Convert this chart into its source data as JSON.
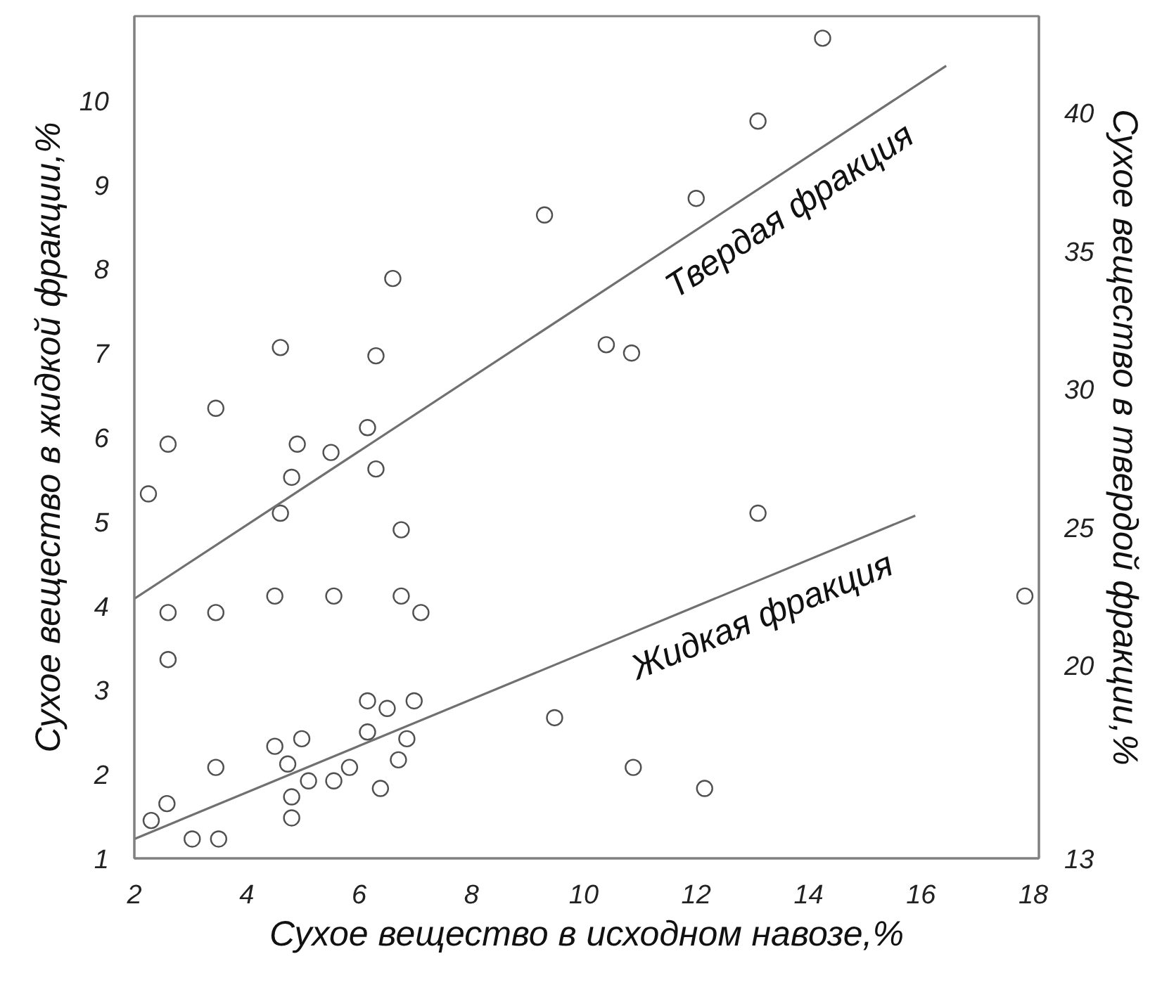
{
  "chart_data": {
    "type": "scatter",
    "xlabel": "Сухое вещество в исходном навозе,%",
    "ylabel": "Сухое вещество в жидкой фракции,%",
    "y2label": "Сухое вещество в твердой фракции,%",
    "xlim": [
      2,
      18.1
    ],
    "xticks": [
      2,
      4,
      6,
      8,
      10,
      12,
      14,
      16,
      18
    ],
    "ylim": [
      1,
      11
    ],
    "yticks": [
      1,
      2,
      3,
      4,
      5,
      6,
      7,
      8,
      9,
      10
    ],
    "y2lim": [
      13,
      43.5
    ],
    "y2ticks": [
      13,
      20,
      25,
      30,
      35,
      40
    ],
    "grid": false,
    "marker": "circle",
    "series": [
      {
        "axis": "y",
        "color": "#505050",
        "x": [
          6.15,
          6.5,
          6.98,
          9.48,
          4.5,
          4.98,
          6.15,
          6.85,
          4.73,
          3.45,
          6.7,
          5.83,
          5.1,
          5.55,
          6.38,
          4.8,
          2.58,
          2.3,
          4.8,
          3.03,
          3.5,
          10.88,
          12.15
        ],
        "values": [
          2.87,
          2.78,
          2.87,
          2.67,
          2.33,
          2.42,
          2.5,
          2.42,
          2.12,
          2.08,
          2.17,
          2.08,
          1.92,
          1.92,
          1.83,
          1.73,
          1.65,
          1.45,
          1.48,
          1.23,
          1.23,
          2.08,
          1.83
        ]
      },
      {
        "axis": "y2",
        "color": "#505050",
        "x": [
          14.25,
          13.1,
          12.0,
          9.3,
          10.4,
          10.85,
          6.6,
          4.6,
          6.3,
          3.45,
          2.6,
          4.9,
          5.5,
          6.15,
          6.3,
          4.8,
          2.25,
          4.6,
          6.75,
          13.1,
          2.6,
          3.45,
          4.5,
          5.55,
          6.75,
          7.1,
          2.6,
          17.85
        ],
        "values": [
          42.7,
          39.7,
          36.9,
          36.3,
          31.6,
          31.3,
          34.0,
          31.5,
          31.2,
          29.3,
          28.0,
          28.0,
          27.7,
          28.6,
          27.1,
          26.8,
          26.2,
          25.5,
          24.9,
          25.5,
          21.9,
          21.9,
          22.5,
          22.5,
          22.5,
          21.9,
          20.2,
          22.5
        ]
      },
      {
        "type": "line",
        "axis": "y2",
        "marker": "none",
        "name": "Твердая фракция",
        "color": "#707070",
        "x": [
          2,
          16.45
        ],
        "values": [
          22.4,
          41.7
        ]
      },
      {
        "type": "line",
        "axis": "y",
        "marker": "none",
        "name": "Жидкая фракция",
        "color": "#707070",
        "x": [
          2,
          15.9
        ],
        "values": [
          1.23,
          5.07
        ]
      }
    ]
  }
}
